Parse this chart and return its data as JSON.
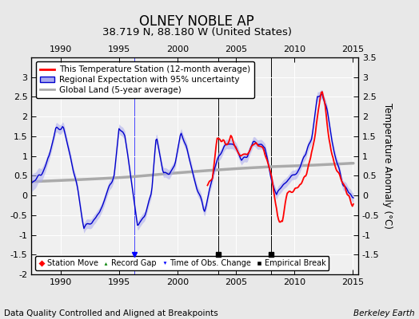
{
  "title": "OLNEY NOBLE AP",
  "subtitle": "38.719 N, 88.180 W (United States)",
  "ylabel": "Temperature Anomaly (°C)",
  "xlabel_left": "Data Quality Controlled and Aligned at Breakpoints",
  "xlabel_right": "Berkeley Earth",
  "ylim": [
    -2.0,
    3.5
  ],
  "xlim": [
    1987.5,
    2015.5
  ],
  "xticks": [
    1990,
    1995,
    2000,
    2005,
    2010,
    2015
  ],
  "yticks": [
    -2,
    -1.5,
    -1,
    -0.5,
    0,
    0.5,
    1,
    1.5,
    2,
    2.5,
    3,
    3.5
  ],
  "red_line_color": "#FF0000",
  "blue_line_color": "#0000CC",
  "blue_fill_color": "#AAAAEE",
  "gray_line_color": "#AAAAAA",
  "empirical_break_years": [
    2003.5,
    2008.0
  ],
  "obs_change_year": 1996.3,
  "background_color": "#FFFFFF",
  "plot_bg_color": "#F0F0F0",
  "grid_color": "#FFFFFF",
  "title_fontsize": 12,
  "subtitle_fontsize": 9.5,
  "tick_fontsize": 8,
  "legend_fontsize": 7.5,
  "annotation_fontsize": 7.5,
  "reg_key_t": [
    1987.5,
    1988.3,
    1989.0,
    1989.6,
    1990.2,
    1990.8,
    1991.4,
    1992.0,
    1992.7,
    1993.3,
    1994.0,
    1994.6,
    1995.0,
    1995.5,
    1996.0,
    1996.6,
    1997.2,
    1997.8,
    1998.2,
    1998.8,
    1999.3,
    1999.8,
    2000.3,
    2000.8,
    2001.3,
    2001.8,
    2002.3,
    2002.7,
    2003.1,
    2003.6,
    2004.0,
    2004.5,
    2005.0,
    2005.5,
    2006.0,
    2006.5,
    2007.0,
    2007.5,
    2008.0,
    2008.5,
    2009.0,
    2009.5,
    2010.0,
    2010.5,
    2011.0,
    2011.5,
    2012.0,
    2012.4,
    2012.8,
    2013.2,
    2013.7,
    2014.2,
    2014.7,
    2015.0
  ],
  "reg_key_v": [
    0.35,
    0.5,
    1.0,
    1.7,
    1.8,
    1.1,
    0.2,
    -0.8,
    -0.7,
    -0.5,
    0.1,
    0.6,
    1.7,
    1.5,
    0.5,
    -0.8,
    -0.5,
    0.1,
    1.5,
    0.6,
    0.5,
    0.8,
    1.6,
    1.2,
    0.6,
    0.1,
    -0.4,
    0.1,
    0.6,
    1.0,
    1.2,
    1.3,
    1.2,
    0.9,
    1.0,
    1.3,
    1.3,
    1.1,
    0.5,
    0.0,
    0.2,
    0.4,
    0.5,
    0.7,
    1.0,
    1.5,
    2.5,
    2.6,
    2.2,
    1.5,
    0.8,
    0.3,
    0.05,
    0.0
  ],
  "red_key_t": [
    2002.5,
    2003.0,
    2003.4,
    2003.8,
    2004.2,
    2004.6,
    2005.0,
    2005.4,
    2005.8,
    2006.2,
    2006.6,
    2007.0,
    2007.4,
    2007.8,
    2008.2,
    2008.6,
    2009.0,
    2009.4,
    2009.8,
    2010.2,
    2010.6,
    2011.0,
    2011.4,
    2011.8,
    2012.1,
    2012.4,
    2012.7,
    2013.0,
    2013.4,
    2013.8,
    2014.2,
    2014.7,
    2015.0
  ],
  "red_key_v": [
    0.2,
    0.4,
    1.5,
    1.4,
    1.3,
    1.5,
    1.2,
    1.0,
    1.0,
    1.1,
    1.3,
    1.3,
    1.1,
    0.8,
    0.3,
    -0.6,
    -0.65,
    0.0,
    0.1,
    0.2,
    0.3,
    0.5,
    0.9,
    1.5,
    2.3,
    2.65,
    2.2,
    1.5,
    0.9,
    0.5,
    0.2,
    0.0,
    -0.25
  ],
  "gl_key_t": [
    1987.5,
    1990,
    1993,
    1996,
    1999,
    2002,
    2005,
    2008,
    2011,
    2014,
    2015
  ],
  "gl_key_v": [
    0.35,
    0.38,
    0.42,
    0.47,
    0.55,
    0.62,
    0.68,
    0.73,
    0.76,
    0.8,
    0.82
  ]
}
